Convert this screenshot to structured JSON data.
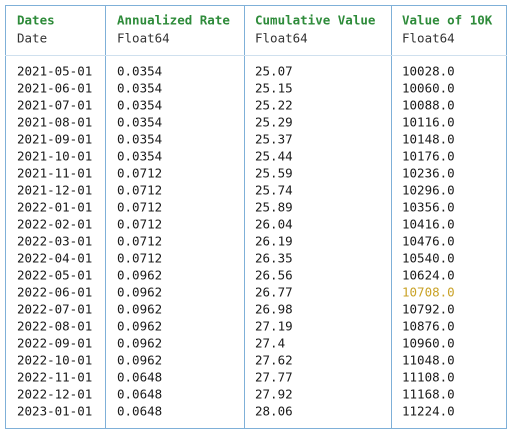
{
  "table": {
    "columns": [
      {
        "name": "Dates",
        "type": "Date"
      },
      {
        "name": "Annualized Rate",
        "type": "Float64"
      },
      {
        "name": "Cumulative Value",
        "type": "Float64"
      },
      {
        "name": "Value of 10K",
        "type": "Float64"
      }
    ],
    "highlighted_cell": [
      13,
      3
    ],
    "rows": [
      [
        "2021-05-01",
        "0.0354",
        "25.07",
        "10028.0"
      ],
      [
        "2021-06-01",
        "0.0354",
        "25.15",
        "10060.0"
      ],
      [
        "2021-07-01",
        "0.0354",
        "25.22",
        "10088.0"
      ],
      [
        "2021-08-01",
        "0.0354",
        "25.29",
        "10116.0"
      ],
      [
        "2021-09-01",
        "0.0354",
        "25.37",
        "10148.0"
      ],
      [
        "2021-10-01",
        "0.0354",
        "25.44",
        "10176.0"
      ],
      [
        "2021-11-01",
        "0.0712",
        "25.59",
        "10236.0"
      ],
      [
        "2021-12-01",
        "0.0712",
        "25.74",
        "10296.0"
      ],
      [
        "2022-01-01",
        "0.0712",
        "25.89",
        "10356.0"
      ],
      [
        "2022-02-01",
        "0.0712",
        "26.04",
        "10416.0"
      ],
      [
        "2022-03-01",
        "0.0712",
        "26.19",
        "10476.0"
      ],
      [
        "2022-04-01",
        "0.0712",
        "26.35",
        "10540.0"
      ],
      [
        "2022-05-01",
        "0.0962",
        "26.56",
        "10624.0"
      ],
      [
        "2022-06-01",
        "0.0962",
        "26.77",
        "10708.0"
      ],
      [
        "2022-07-01",
        "0.0962",
        "26.98",
        "10792.0"
      ],
      [
        "2022-08-01",
        "0.0962",
        "27.19",
        "10876.0"
      ],
      [
        "2022-09-01",
        "0.0962",
        "27.4",
        "10960.0"
      ],
      [
        "2022-10-01",
        "0.0962",
        "27.62",
        "11048.0"
      ],
      [
        "2022-11-01",
        "0.0648",
        "27.77",
        "11108.0"
      ],
      [
        "2022-12-01",
        "0.0648",
        "27.92",
        "11168.0"
      ],
      [
        "2023-01-01",
        "0.0648",
        "28.06",
        "11224.0"
      ]
    ]
  }
}
